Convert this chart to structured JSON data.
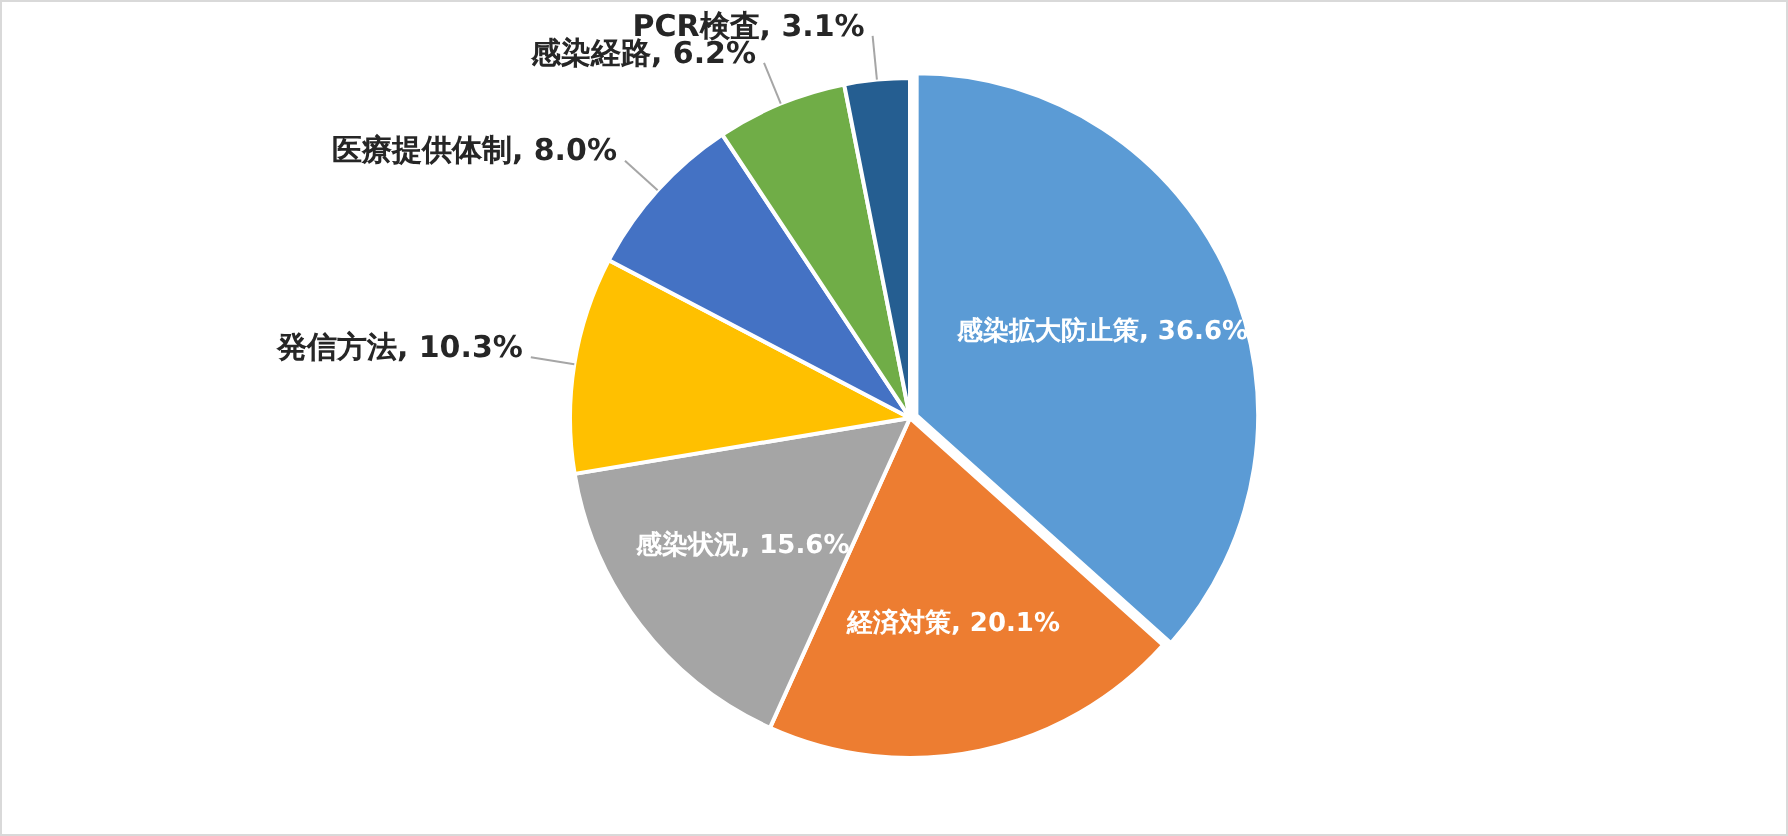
{
  "chart_data": {
    "type": "pie",
    "categories": [
      "感染拡大防止策",
      "経済対策",
      "感染状況",
      "発信方法",
      "医療提供体制",
      "感染経路",
      "PCR検査"
    ],
    "values": [
      36.6,
      20.1,
      15.6,
      10.3,
      8.0,
      6.2,
      3.1
    ],
    "value_labels": [
      "36.6%",
      "20.1%",
      "15.6%",
      "10.3%",
      "8.0%",
      "6.2%",
      "3.1%"
    ],
    "colors": [
      "#5b9bd5",
      "#ed7d31",
      "#a5a5a5",
      "#ffc000",
      "#4472c4",
      "#70ad47",
      "#255e91"
    ],
    "legend": false
  }
}
